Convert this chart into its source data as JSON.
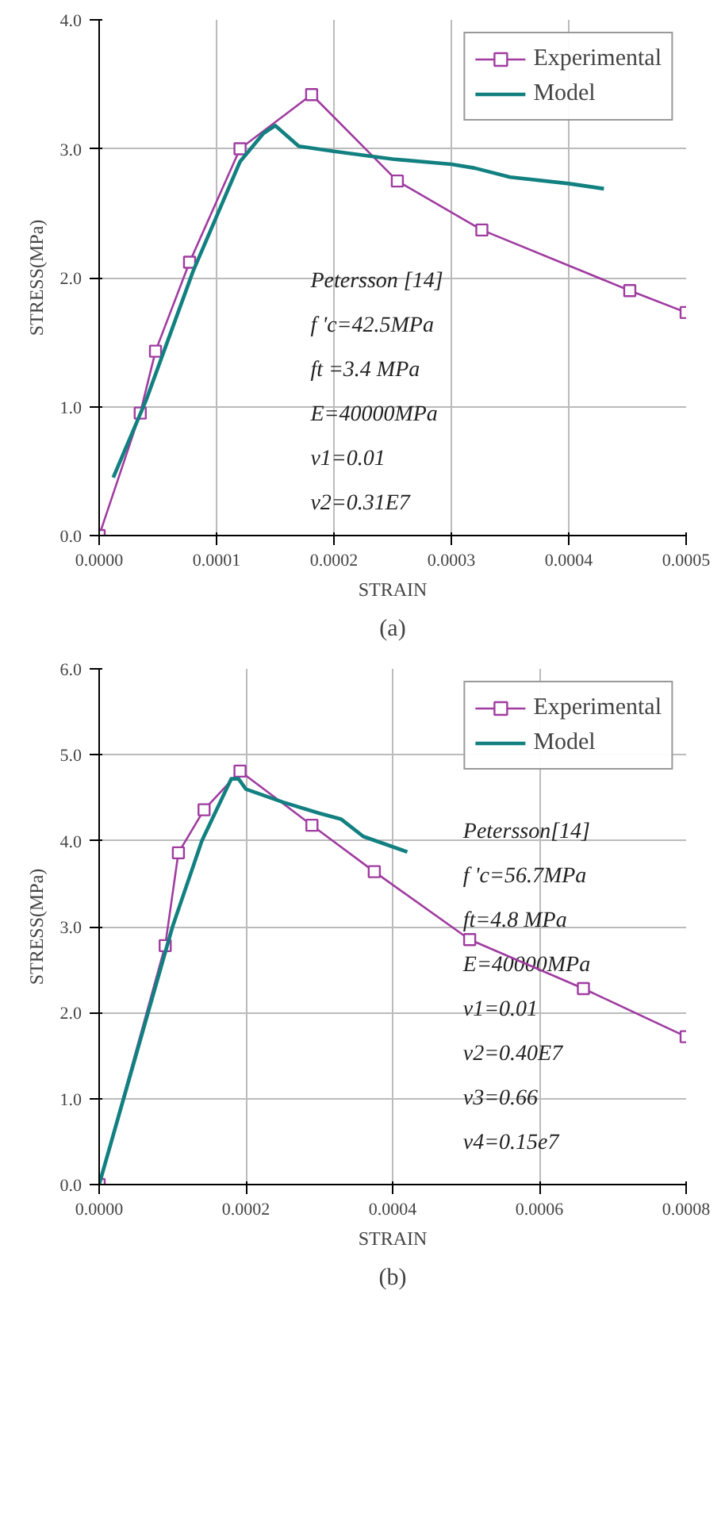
{
  "chart_data": [
    {
      "type": "line",
      "title": "(a)",
      "xlabel": "STRAIN",
      "ylabel": "STRESS(MPa)",
      "xlim": [
        0,
        0.0005
      ],
      "ylim": [
        0,
        4
      ],
      "xticks": [
        {
          "value": 0,
          "label": "0.0000"
        },
        {
          "value": 0.0001,
          "label": "0.0001"
        },
        {
          "value": 0.0002,
          "label": "0.0002"
        },
        {
          "value": 0.0003,
          "label": "0.0003"
        },
        {
          "value": 0.0004,
          "label": "0.0004"
        },
        {
          "value": 0.0005,
          "label": "0.0005"
        }
      ],
      "yticks": [
        {
          "value": 0,
          "label": "0.0"
        },
        {
          "value": 1,
          "label": "1.0"
        },
        {
          "value": 2,
          "label": "2.0"
        },
        {
          "value": 3,
          "label": "3.0"
        },
        {
          "value": 4,
          "label": "4.0"
        }
      ],
      "grid": true,
      "legend": "top right",
      "annotations": [
        "Petersson [14]",
        "f 'c=42.5MPa",
        "ft =3.4 MPa",
        "E=40000MPa",
        "v1=0.01",
        "v2=0.31E7"
      ],
      "series": [
        {
          "name": "Experimental",
          "color": "#a03ca0",
          "marker": "square",
          "x": [
            0,
            3.5e-05,
            4.8e-05,
            7.7e-05,
            0.00012,
            0.000181,
            0.000254,
            0.000326,
            0.000452,
            0.0005
          ],
          "values": [
            0,
            0.95,
            1.43,
            2.12,
            3.0,
            3.42,
            2.75,
            2.37,
            1.9,
            1.73
          ]
        },
        {
          "name": "Model",
          "color": "#128080",
          "marker": "none",
          "x": [
            1.2e-05,
            4e-05,
            8e-05,
            0.00012,
            0.00014,
            0.00015,
            0.00016,
            0.00017,
            0.0002,
            0.00025,
            0.0003,
            0.00032,
            0.00035,
            0.0004,
            0.00043
          ],
          "values": [
            0.45,
            1.05,
            2.05,
            2.9,
            3.12,
            3.18,
            3.1,
            3.02,
            2.98,
            2.92,
            2.88,
            2.85,
            2.78,
            2.73,
            2.69
          ]
        }
      ]
    },
    {
      "type": "line",
      "title": "(b)",
      "xlabel": "STRAIN",
      "ylabel": "STRESS(MPa)",
      "xlim": [
        0,
        0.0008
      ],
      "ylim": [
        0,
        6
      ],
      "xticks": [
        {
          "value": 0,
          "label": "0.0000"
        },
        {
          "value": 0.0002,
          "label": "0.0002"
        },
        {
          "value": 0.0004,
          "label": "0.0004"
        },
        {
          "value": 0.0006,
          "label": "0.0006"
        },
        {
          "value": 0.0008,
          "label": "0.0008"
        }
      ],
      "yticks": [
        {
          "value": 0,
          "label": "0.0"
        },
        {
          "value": 1,
          "label": "1.0"
        },
        {
          "value": 2,
          "label": "2.0"
        },
        {
          "value": 3,
          "label": "3.0"
        },
        {
          "value": 4,
          "label": "4.0"
        },
        {
          "value": 5,
          "label": "5.0"
        },
        {
          "value": 6,
          "label": "6.0"
        }
      ],
      "grid": true,
      "legend": "top right",
      "annotations": [
        "Petersson[14]",
        "f 'c=56.7MPa",
        "ft=4.8 MPa",
        "E=40000MPa",
        "v1=0.01",
        "v2=0.40E7",
        "v3=0.66",
        "v4=0.15e7"
      ],
      "series": [
        {
          "name": "Experimental",
          "color": "#a03ca0",
          "marker": "square",
          "x": [
            0,
            9e-05,
            0.000108,
            0.000143,
            0.000192,
            0.00029,
            0.000375,
            0.000505,
            0.00066,
            0.0008
          ],
          "values": [
            0,
            2.78,
            3.86,
            4.36,
            4.81,
            4.18,
            3.64,
            2.85,
            2.28,
            1.72
          ]
        },
        {
          "name": "Model",
          "color": "#128080",
          "marker": "none",
          "x": [
            0,
            5e-05,
            0.0001,
            0.00014,
            0.00018,
            0.00019,
            0.0002,
            0.00025,
            0.0003,
            0.00033,
            0.00036,
            0.0004,
            0.00042
          ],
          "values": [
            0,
            1.5,
            3.0,
            4.0,
            4.72,
            4.72,
            4.6,
            4.45,
            4.32,
            4.25,
            4.05,
            3.93,
            3.87
          ]
        }
      ]
    }
  ]
}
